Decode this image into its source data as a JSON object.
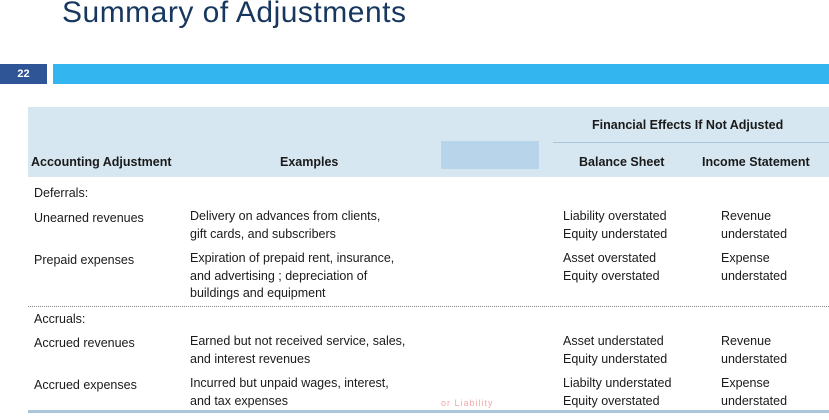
{
  "slide": {
    "title": "Summary of Adjustments",
    "number": "22"
  },
  "table": {
    "group_header": "Financial Effects If Not Adjusted",
    "columns": {
      "adjustment": "Accounting Adjustment",
      "examples": "Examples",
      "balance_sheet": "Balance Sheet",
      "income_statement": "Income Statement"
    },
    "sections": [
      {
        "label": "Deferrals:",
        "rows": [
          {
            "adjustment": "Unearned revenues",
            "examples": [
              "Delivery on advances from clients,",
              "gift cards, and subscribers"
            ],
            "balance_sheet": [
              "Liability overstated",
              "Equity understated"
            ],
            "income_statement": [
              "Revenue",
              "understated"
            ]
          },
          {
            "adjustment": "Prepaid expenses",
            "examples": [
              "Expiration of prepaid rent, insurance,",
              "and advertising ; depreciation of",
              "buildings and equipment"
            ],
            "balance_sheet": [
              "Asset overstated",
              "Equity overstated"
            ],
            "income_statement": [
              "Expense",
              "understated"
            ]
          }
        ]
      },
      {
        "label": "Accruals:",
        "rows": [
          {
            "adjustment": "Accrued revenues",
            "examples": [
              "Earned but not received service, sales,",
              "and interest revenues"
            ],
            "balance_sheet": [
              "Asset understated",
              "Equity understated"
            ],
            "income_statement": [
              "Revenue",
              "understated"
            ]
          },
          {
            "adjustment": "Accrued expenses",
            "examples": [
              "Incurred but unpaid wages, interest,",
              "and tax expenses"
            ],
            "balance_sheet": [
              "Liabilty understated",
              "Equity overstated"
            ],
            "income_statement": [
              "Expense",
              "understated"
            ]
          }
        ]
      }
    ],
    "faint_note": "or Liability"
  }
}
